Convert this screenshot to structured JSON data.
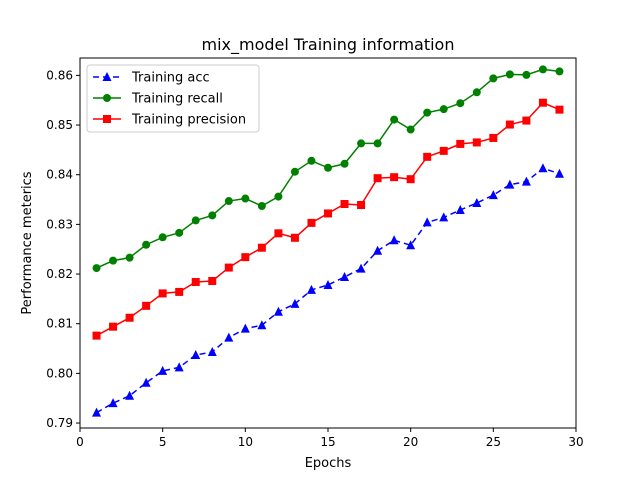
{
  "chart_data": {
    "type": "line",
    "title": "mix_model Training information",
    "xlabel": "Epochs",
    "ylabel": "Performance meterics",
    "xlim": [
      0,
      30
    ],
    "ylim": [
      0.789,
      0.8635
    ],
    "xticks": [
      0,
      5,
      10,
      15,
      20,
      25,
      30
    ],
    "yticks": [
      0.79,
      0.8,
      0.81,
      0.82,
      0.83,
      0.84,
      0.85,
      0.86
    ],
    "grid": false,
    "legend_position": "upper-left",
    "x": [
      1,
      2,
      3,
      4,
      5,
      6,
      7,
      8,
      9,
      10,
      11,
      12,
      13,
      14,
      15,
      16,
      17,
      18,
      19,
      20,
      21,
      22,
      23,
      24,
      25,
      26,
      27,
      28,
      29
    ],
    "series": [
      {
        "name": "Training acc",
        "color": "#0000ff",
        "linestyle": "dashed",
        "marker": "triangle",
        "values": [
          0.7921,
          0.794,
          0.7955,
          0.7981,
          0.8005,
          0.8012,
          0.8037,
          0.8043,
          0.8072,
          0.809,
          0.8097,
          0.8124,
          0.814,
          0.8168,
          0.8178,
          0.8194,
          0.8211,
          0.8247,
          0.8268,
          0.8258,
          0.8304,
          0.8314,
          0.8329,
          0.8343,
          0.8359,
          0.838,
          0.8386,
          0.8413,
          0.8402
        ]
      },
      {
        "name": "Training recall",
        "color": "#008000",
        "linestyle": "solid",
        "marker": "circle",
        "values": [
          0.8212,
          0.8227,
          0.8233,
          0.8259,
          0.8274,
          0.8283,
          0.8308,
          0.8318,
          0.8347,
          0.8352,
          0.8337,
          0.8356,
          0.8406,
          0.8428,
          0.8414,
          0.8422,
          0.8463,
          0.8463,
          0.8511,
          0.8491,
          0.8525,
          0.8532,
          0.8544,
          0.8566,
          0.8594,
          0.8602,
          0.8601,
          0.8612,
          0.8608
        ]
      },
      {
        "name": "Training precision",
        "color": "#ff0000",
        "linestyle": "solid",
        "marker": "square",
        "values": [
          0.8076,
          0.8094,
          0.8112,
          0.8136,
          0.8161,
          0.8164,
          0.8184,
          0.8186,
          0.8213,
          0.8234,
          0.8253,
          0.8282,
          0.8273,
          0.8303,
          0.8322,
          0.8341,
          0.8339,
          0.8393,
          0.8395,
          0.8391,
          0.8436,
          0.8448,
          0.8462,
          0.8465,
          0.8474,
          0.8501,
          0.8509,
          0.8545,
          0.8531
        ]
      }
    ]
  }
}
